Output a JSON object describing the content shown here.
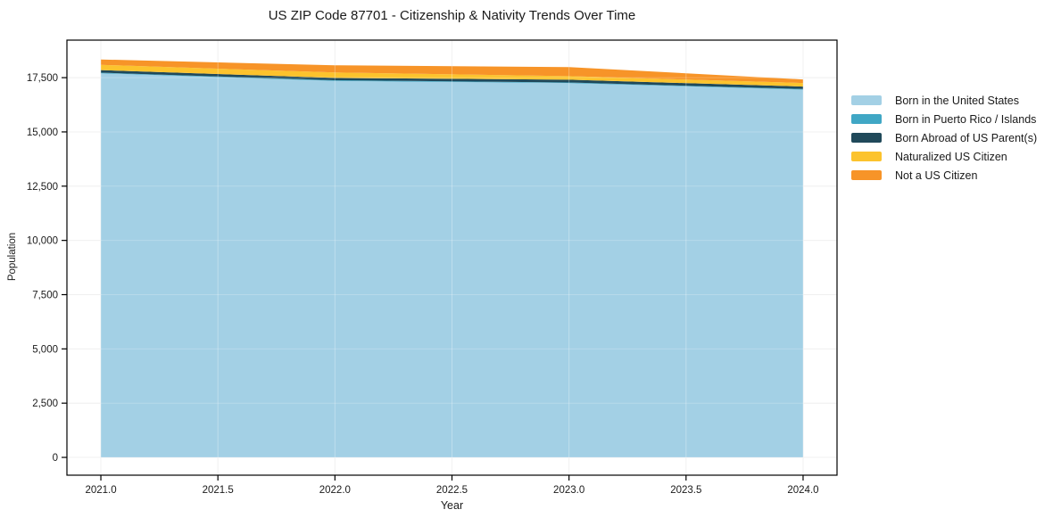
{
  "title": "US ZIP Code 87701 - Citizenship & Nativity Trends Over Time",
  "chart_data": {
    "type": "area",
    "stacked": true,
    "title": "US ZIP Code 87701 - Citizenship & Nativity Trends Over Time",
    "xlabel": "Year",
    "ylabel": "Population",
    "x": [
      2021,
      2022,
      2023,
      2024
    ],
    "series": [
      {
        "name": "Born in the United States",
        "color": "#a3d0e5",
        "values": [
          17700,
          17350,
          17250,
          16950
        ]
      },
      {
        "name": "Born in Puerto Rico / Islands",
        "color": "#40a7c5",
        "values": [
          30,
          30,
          30,
          30
        ]
      },
      {
        "name": "Born Abroad of US Parent(s)",
        "color": "#20495a",
        "values": [
          120,
          110,
          125,
          110
        ]
      },
      {
        "name": "Naturalized US Citizen",
        "color": "#fcc32d",
        "values": [
          240,
          250,
          165,
          165
        ]
      },
      {
        "name": "Not a US Citizen",
        "color": "#f79428",
        "values": [
          250,
          330,
          415,
          165
        ]
      }
    ],
    "x_ticks": {
      "values": [
        2021.0,
        2021.5,
        2022.0,
        2022.5,
        2023.0,
        2023.5,
        2024.0
      ],
      "labels": [
        "2021.0",
        "2021.5",
        "2022.0",
        "2022.5",
        "2023.0",
        "2023.5",
        "2024.0"
      ]
    },
    "y_ticks": {
      "values": [
        0,
        2500,
        5000,
        7500,
        10000,
        12500,
        15000,
        17500
      ],
      "labels": [
        "0",
        "2,500",
        "5,000",
        "7,500",
        "10,000",
        "12,500",
        "15,000",
        "17,500"
      ]
    },
    "xlim": [
      2020.855,
      2024.145
    ],
    "ylim": [
      -820,
      19230
    ],
    "grid": true,
    "legend_position": "right-outside"
  },
  "colors": {
    "background": "#ffffff",
    "grid": "#ececec",
    "spine": "#000000",
    "text": "#1a1a1a"
  }
}
